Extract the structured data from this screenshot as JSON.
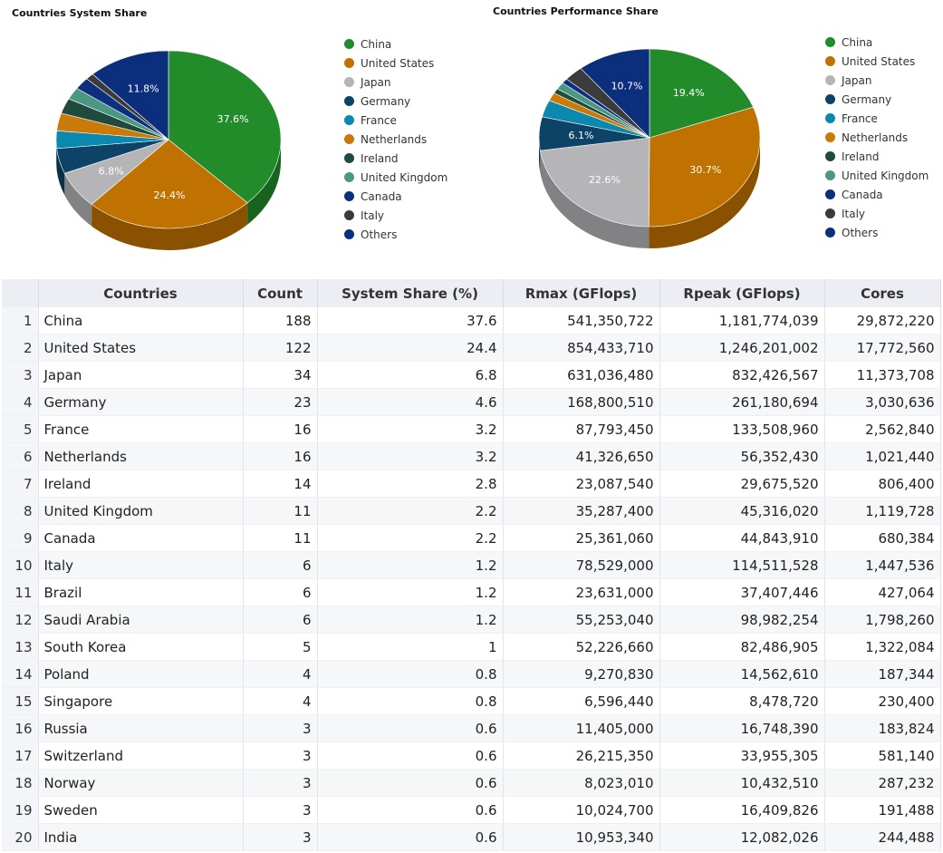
{
  "chart_data": [
    {
      "type": "pie",
      "title": "Countries System Share",
      "categories": [
        "China",
        "United States",
        "Japan",
        "Germany",
        "France",
        "Netherlands",
        "Ireland",
        "United Kingdom",
        "Canada",
        "Italy",
        "Others"
      ],
      "values": [
        37.6,
        24.4,
        6.8,
        4.6,
        3.2,
        3.2,
        2.8,
        2.2,
        2.2,
        1.2,
        11.8
      ],
      "labels": [
        "37.6%",
        "24.4%",
        "6.8%",
        "",
        "",
        "",
        "",
        "",
        "",
        "",
        "11.8%"
      ],
      "colors": [
        "#228b2a",
        "#bf7200",
        "#b5b5b8",
        "#0c4366",
        "#0a88ae",
        "#c97a08",
        "#1f4a3c",
        "#4a9884",
        "#0e2f7e",
        "#3b3b3b",
        "#0b2e7d"
      ],
      "legend_position": "right"
    },
    {
      "type": "pie",
      "title": "Countries Performance Share",
      "categories": [
        "China",
        "United States",
        "Japan",
        "Germany",
        "France",
        "Netherlands",
        "Ireland",
        "United Kingdom",
        "Canada",
        "Italy",
        "Others"
      ],
      "values": [
        19.4,
        30.7,
        22.6,
        6.1,
        3.1,
        1.5,
        0.9,
        1.3,
        0.9,
        2.8,
        10.7
      ],
      "labels": [
        "19.4%",
        "30.7%",
        "22.6%",
        "6.1%",
        "",
        "",
        "",
        "",
        "",
        "",
        "10.7%"
      ],
      "colors": [
        "#228b2a",
        "#bf7200",
        "#b5b5b8",
        "#0c4366",
        "#0a88ae",
        "#c97a08",
        "#1f4a3c",
        "#4a9884",
        "#0e2f7e",
        "#3b3b3b",
        "#0b2e7d"
      ],
      "legend_position": "right"
    },
    {
      "type": "table",
      "headers": [
        "",
        "Countries",
        "Count",
        "System Share (%)",
        "Rmax (GFlops)",
        "Rpeak (GFlops)",
        "Cores"
      ],
      "rows": [
        [
          "1",
          "China",
          "188",
          "37.6",
          "541,350,722",
          "1,181,774,039",
          "29,872,220"
        ],
        [
          "2",
          "United States",
          "122",
          "24.4",
          "854,433,710",
          "1,246,201,002",
          "17,772,560"
        ],
        [
          "3",
          "Japan",
          "34",
          "6.8",
          "631,036,480",
          "832,426,567",
          "11,373,708"
        ],
        [
          "4",
          "Germany",
          "23",
          "4.6",
          "168,800,510",
          "261,180,694",
          "3,030,636"
        ],
        [
          "5",
          "France",
          "16",
          "3.2",
          "87,793,450",
          "133,508,960",
          "2,562,840"
        ],
        [
          "6",
          "Netherlands",
          "16",
          "3.2",
          "41,326,650",
          "56,352,430",
          "1,021,440"
        ],
        [
          "7",
          "Ireland",
          "14",
          "2.8",
          "23,087,540",
          "29,675,520",
          "806,400"
        ],
        [
          "8",
          "United Kingdom",
          "11",
          "2.2",
          "35,287,400",
          "45,316,020",
          "1,119,728"
        ],
        [
          "9",
          "Canada",
          "11",
          "2.2",
          "25,361,060",
          "44,843,910",
          "680,384"
        ],
        [
          "10",
          "Italy",
          "6",
          "1.2",
          "78,529,000",
          "114,511,528",
          "1,447,536"
        ],
        [
          "11",
          "Brazil",
          "6",
          "1.2",
          "23,631,000",
          "37,407,446",
          "427,064"
        ],
        [
          "12",
          "Saudi Arabia",
          "6",
          "1.2",
          "55,253,040",
          "98,982,254",
          "1,798,260"
        ],
        [
          "13",
          "South Korea",
          "5",
          "1",
          "52,226,660",
          "82,486,905",
          "1,322,084"
        ],
        [
          "14",
          "Poland",
          "4",
          "0.8",
          "9,270,830",
          "14,562,610",
          "187,344"
        ],
        [
          "15",
          "Singapore",
          "4",
          "0.8",
          "6,596,440",
          "8,478,720",
          "230,400"
        ],
        [
          "16",
          "Russia",
          "3",
          "0.6",
          "11,405,000",
          "16,748,390",
          "183,824"
        ],
        [
          "17",
          "Switzerland",
          "3",
          "0.6",
          "26,215,350",
          "33,955,305",
          "581,140"
        ],
        [
          "18",
          "Norway",
          "3",
          "0.6",
          "8,023,010",
          "10,432,510",
          "287,232"
        ],
        [
          "19",
          "Sweden",
          "3",
          "0.6",
          "10,024,700",
          "16,409,826",
          "191,488"
        ],
        [
          "20",
          "India",
          "3",
          "0.6",
          "10,953,340",
          "12,082,026",
          "244,488"
        ]
      ]
    }
  ]
}
